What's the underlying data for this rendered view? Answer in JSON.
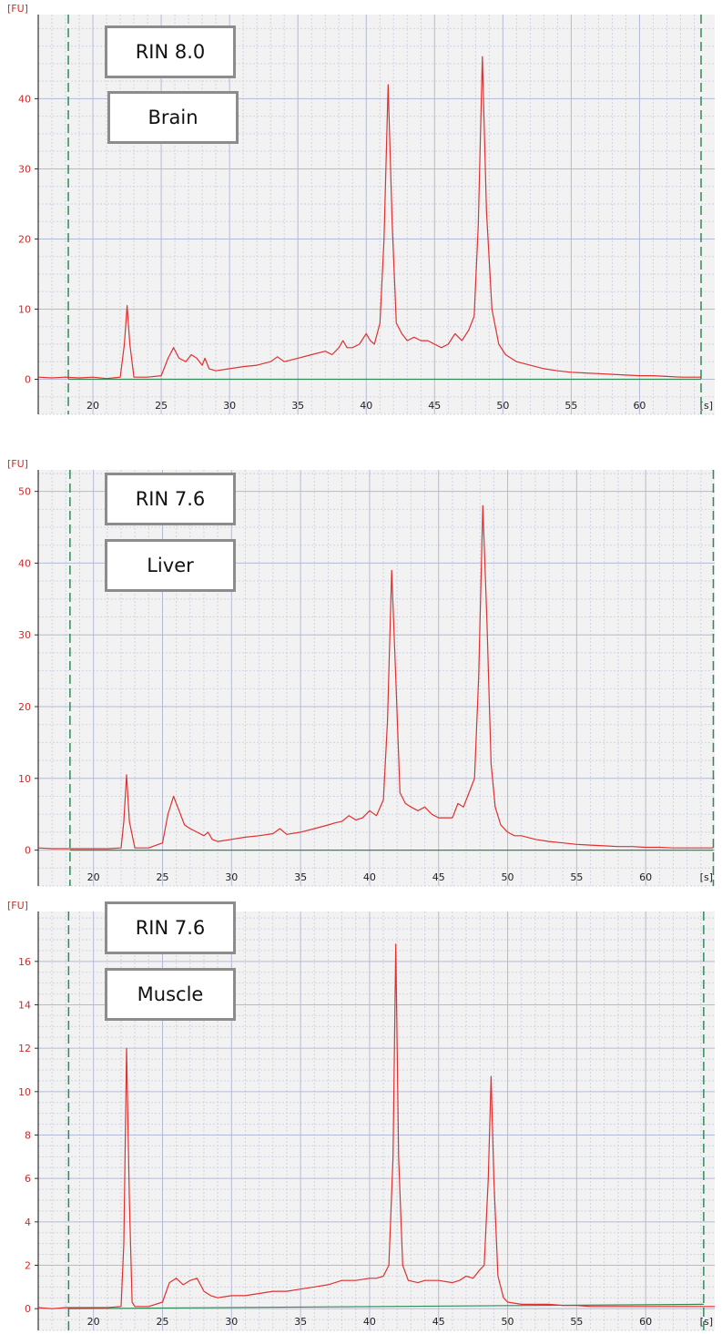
{
  "colors": {
    "trace": "#e03030",
    "baseline": "#2e8b57",
    "marker": "#2e8b57",
    "grid_major": "#b4bad6",
    "grid_minor": "#cfd3e4",
    "tick_y": "#d22a2a",
    "plot_bg": "#f2f2f2",
    "axis": "#333333"
  },
  "chart_data": [
    {
      "type": "line",
      "rin_label": "RIN 8.0",
      "tissue_label": "Brain",
      "ylabel": "[FU]",
      "xlabel": "[s]",
      "xlim": [
        16,
        65.5
      ],
      "ylim": [
        -5,
        52
      ],
      "xticks": [
        20,
        25,
        30,
        35,
        40,
        45,
        50,
        55,
        60
      ],
      "yticks": [
        0,
        10,
        20,
        30,
        40
      ],
      "markers": [
        18.2,
        64.5
      ],
      "baseline": [
        [
          18.2,
          0
        ],
        [
          64.5,
          0
        ]
      ],
      "series": [
        {
          "x": [
            16,
            17,
            18,
            19,
            20,
            21,
            22,
            22.3,
            22.5,
            22.7,
            23,
            24,
            25,
            25.5,
            25.9,
            26.3,
            26.8,
            27.2,
            27.6,
            28,
            28.2,
            28.5,
            29,
            30,
            31,
            32,
            33,
            33.5,
            34,
            35,
            36,
            37,
            37.5,
            38,
            38.3,
            38.6,
            39,
            39.5,
            40,
            40.3,
            40.6,
            41,
            41.3,
            41.6,
            41.9,
            42.2,
            42.6,
            43,
            43.5,
            44,
            44.5,
            45,
            45.5,
            46,
            46.5,
            47,
            47.5,
            47.9,
            48.2,
            48.5,
            48.8,
            49.2,
            49.7,
            50.2,
            51,
            52,
            53,
            54,
            55,
            56,
            57,
            58,
            59,
            60,
            61,
            62,
            63,
            64,
            64.5
          ],
          "y": [
            0.3,
            0.2,
            0.3,
            0.2,
            0.3,
            0.1,
            0.3,
            5,
            10.5,
            5,
            0.3,
            0.3,
            0.5,
            3,
            4.5,
            3,
            2.5,
            3.5,
            3,
            2,
            3,
            1.5,
            1.2,
            1.5,
            1.8,
            2,
            2.5,
            3.2,
            2.5,
            3,
            3.5,
            4,
            3.5,
            4.5,
            5.5,
            4.5,
            4.5,
            5,
            6.5,
            5.5,
            5,
            8,
            20,
            42,
            22,
            8,
            6.5,
            5.5,
            6,
            5.5,
            5.5,
            5,
            4.5,
            5,
            6.5,
            5.5,
            7,
            9,
            22,
            46,
            24,
            10,
            5,
            3.5,
            2.5,
            2,
            1.5,
            1.2,
            1,
            0.9,
            0.8,
            0.7,
            0.6,
            0.5,
            0.5,
            0.4,
            0.3,
            0.3,
            0.3
          ]
        }
      ]
    },
    {
      "type": "line",
      "rin_label": "RIN 7.6",
      "tissue_label": "Liver",
      "ylabel": "[FU]",
      "xlabel": "[s]",
      "xlim": [
        16,
        65
      ],
      "ylim": [
        -5,
        53
      ],
      "xticks": [
        20,
        25,
        30,
        35,
        40,
        45,
        50,
        55,
        60
      ],
      "yticks": [
        0,
        10,
        20,
        30,
        40,
        50
      ],
      "markers": [
        18.3,
        64.9
      ],
      "baseline": [
        [
          18.3,
          0
        ],
        [
          64.9,
          0
        ]
      ],
      "series": [
        {
          "x": [
            16,
            17,
            18,
            19,
            20,
            21,
            22,
            22.2,
            22.4,
            22.6,
            23,
            24,
            25,
            25.4,
            25.8,
            26.2,
            26.6,
            27,
            27.5,
            28,
            28.3,
            28.6,
            29,
            30,
            31,
            32,
            33,
            33.5,
            34,
            35,
            36,
            37,
            37.5,
            38,
            38.5,
            39,
            39.5,
            40,
            40.5,
            41,
            41.3,
            41.6,
            41.9,
            42.2,
            42.6,
            43,
            43.5,
            44,
            44.5,
            45,
            45.5,
            46,
            46.4,
            46.8,
            47.2,
            47.6,
            47.9,
            48.2,
            48.5,
            48.8,
            49.1,
            49.5,
            50,
            50.5,
            51,
            52,
            53,
            54,
            55,
            56,
            57,
            58,
            59,
            60,
            61,
            62,
            63,
            64,
            64.9
          ],
          "y": [
            0.3,
            0.2,
            0.2,
            0.2,
            0.2,
            0.2,
            0.3,
            4,
            10.5,
            4,
            0.3,
            0.3,
            1,
            5,
            7.5,
            5.5,
            3.5,
            3,
            2.5,
            2,
            2.5,
            1.5,
            1.2,
            1.5,
            1.8,
            2,
            2.3,
            3,
            2.2,
            2.5,
            3,
            3.5,
            3.8,
            4,
            4.8,
            4.2,
            4.5,
            5.5,
            4.8,
            7,
            18,
            39,
            24,
            8,
            6.5,
            6,
            5.5,
            6,
            5,
            4.5,
            4.5,
            4.5,
            6.5,
            6,
            8,
            10,
            24,
            48,
            32,
            12,
            6,
            3.5,
            2.5,
            2,
            2,
            1.5,
            1.2,
            1,
            0.8,
            0.7,
            0.6,
            0.5,
            0.5,
            0.4,
            0.4,
            0.3,
            0.3,
            0.3,
            0.3
          ]
        }
      ]
    },
    {
      "type": "line",
      "rin_label": "RIN 7.6",
      "tissue_label": "Muscle",
      "ylabel": "[FU]",
      "xlabel": "[s]",
      "xlim": [
        16,
        65
      ],
      "ylim": [
        -1,
        18.3
      ],
      "xticks": [
        20,
        25,
        30,
        35,
        40,
        45,
        50,
        55,
        60
      ],
      "yticks": [
        0,
        2,
        4,
        6,
        8,
        10,
        12,
        14,
        16
      ],
      "markers": [
        18.2,
        64.2
      ],
      "baseline": [
        [
          18.2,
          0
        ],
        [
          64.2,
          0.2
        ]
      ],
      "series": [
        {
          "x": [
            16,
            17,
            18,
            19,
            20,
            21,
            22,
            22.2,
            22.4,
            22.6,
            22.8,
            23,
            24,
            25,
            25.5,
            26,
            26.5,
            27,
            27.5,
            28,
            28.5,
            29,
            30,
            31,
            32,
            33,
            34,
            35,
            36,
            37,
            38,
            39,
            40,
            40.5,
            41,
            41.4,
            41.7,
            41.9,
            42.1,
            42.4,
            42.8,
            43.5,
            44,
            45,
            46,
            46.5,
            47,
            47.5,
            48,
            48.3,
            48.6,
            48.8,
            49,
            49.3,
            49.7,
            50,
            51,
            52,
            53,
            54,
            55,
            56,
            57,
            58,
            59,
            60,
            61,
            62,
            63,
            64,
            65
          ],
          "y": [
            0.05,
            0,
            0.05,
            0.05,
            0.05,
            0.05,
            0.1,
            3,
            12,
            5,
            0.3,
            0.1,
            0.1,
            0.3,
            1.2,
            1.4,
            1.1,
            1.3,
            1.4,
            0.8,
            0.6,
            0.5,
            0.6,
            0.6,
            0.7,
            0.8,
            0.8,
            0.9,
            1,
            1.1,
            1.3,
            1.3,
            1.4,
            1.4,
            1.5,
            2,
            7,
            16.8,
            7,
            2,
            1.3,
            1.2,
            1.3,
            1.3,
            1.2,
            1.3,
            1.5,
            1.4,
            1.8,
            2,
            6,
            10.7,
            6,
            1.5,
            0.5,
            0.3,
            0.2,
            0.2,
            0.2,
            0.15,
            0.15,
            0.1,
            0.1,
            0.1,
            0.1,
            0.1,
            0.1,
            0.1,
            0.1,
            0.1,
            0.1
          ]
        }
      ]
    }
  ]
}
